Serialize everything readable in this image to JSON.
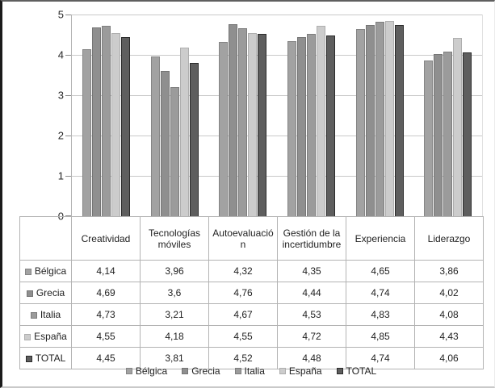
{
  "chart_data": {
    "type": "bar",
    "title": "",
    "xlabel": "",
    "ylabel": "",
    "ylim": [
      0,
      5
    ],
    "yticks": [
      "0",
      "1",
      "2",
      "3",
      "4",
      "5"
    ],
    "grid": true,
    "legend_position": "bottom",
    "categories": [
      "Creatividad",
      "Tecnologías móviles",
      "Autoevaluación",
      "Gestión de la incertidumbre",
      "Experiencia",
      "Liderazgo"
    ],
    "series": [
      {
        "name": "Bélgica",
        "values": [
          4.14,
          3.96,
          4.32,
          4.35,
          4.65,
          3.86
        ],
        "color": "#a2a2a2",
        "border_color": "#858585"
      },
      {
        "name": "Grecia",
        "values": [
          4.69,
          3.6,
          4.76,
          4.44,
          4.74,
          4.02
        ],
        "color": "#8f8f8f",
        "border_color": "#757575"
      },
      {
        "name": "Italia",
        "values": [
          4.73,
          3.21,
          4.67,
          4.53,
          4.83,
          4.08
        ],
        "color": "#9b9b9b",
        "border_color": "#7d7d7d"
      },
      {
        "name": "España",
        "values": [
          4.55,
          4.18,
          4.55,
          4.72,
          4.85,
          4.43
        ],
        "color": "#cccccc",
        "border_color": "#aeaeae"
      },
      {
        "name": "TOTAL",
        "values": [
          4.45,
          3.81,
          4.52,
          4.48,
          4.74,
          4.06
        ],
        "color": "#5e5e5e",
        "border_color": "#2b2b2b"
      }
    ],
    "table_value_labels": [
      [
        "4,14",
        "3,96",
        "4,32",
        "4,35",
        "4,65",
        "3,86"
      ],
      [
        "4,69",
        "3,6",
        "4,76",
        "4,44",
        "4,74",
        "4,02"
      ],
      [
        "4,73",
        "3,21",
        "4,67",
        "4,53",
        "4,83",
        "4,08"
      ],
      [
        "4,55",
        "4,18",
        "4,55",
        "4,72",
        "4,85",
        "4,43"
      ],
      [
        "4,45",
        "3,81",
        "4,52",
        "4,48",
        "4,74",
        "4,06"
      ]
    ]
  }
}
